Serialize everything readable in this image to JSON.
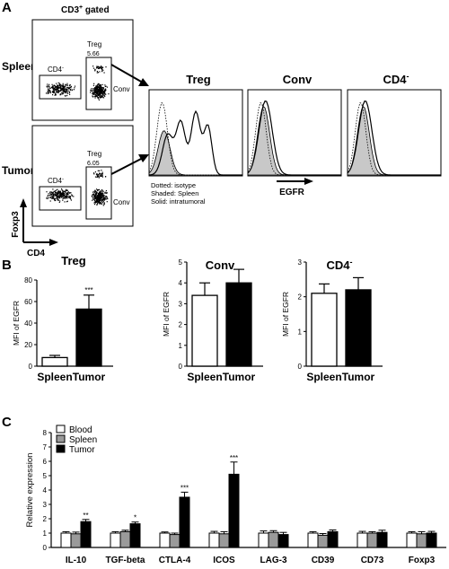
{
  "panel_a": {
    "letter": "A",
    "gate_label": "CD3",
    "gate_sup": "+",
    "gate_suffix": " gated",
    "rows": [
      {
        "tissue": "Spleen",
        "cd4neg_label": "CD4",
        "cd4neg_sup": "-",
        "treg_label": "Treg",
        "treg_pct": "5.66",
        "conv_label": "Conv"
      },
      {
        "tissue": "Tumor",
        "cd4neg_label": "CD4",
        "cd4neg_sup": "-",
        "treg_label": "Treg",
        "treg_pct": "6.05",
        "conv_label": "Conv"
      }
    ],
    "y_axis_label": "Foxp3",
    "x_axis_label": "CD4",
    "histogram_titles": [
      "Treg",
      "Conv",
      "CD4"
    ],
    "histogram_title_sup": "-",
    "legend": [
      "Dotted: isotype",
      "Shaded: Spleen",
      "Solid: intratumoral"
    ],
    "marker_label": "EGFR"
  },
  "panel_b": {
    "letter": "B",
    "charts": [
      {
        "title": "Treg",
        "ylabel": "MFI of EGFR",
        "ylim": [
          0,
          80
        ],
        "ticks": [
          0,
          20,
          40,
          60,
          80
        ],
        "categories": [
          "Spleen",
          "Tumor"
        ],
        "values": [
          8,
          53
        ],
        "errors": [
          2,
          13
        ],
        "significance": [
          "",
          "***"
        ]
      },
      {
        "title": "Conv",
        "ylabel": "MFI of EGFR",
        "ylim": [
          0,
          5
        ],
        "ticks": [
          0,
          1,
          2,
          3,
          4,
          5
        ],
        "categories": [
          "Spleen",
          "Tumor"
        ],
        "values": [
          3.4,
          4.0
        ],
        "errors": [
          0.6,
          0.65
        ],
        "significance": [
          "",
          ""
        ]
      },
      {
        "title": "CD4",
        "title_sup": "-",
        "ylabel": "MFI of EGFR",
        "ylim": [
          0,
          3
        ],
        "ticks": [
          0,
          1,
          2,
          3
        ],
        "categories": [
          "Spleen",
          "Tumor"
        ],
        "values": [
          2.1,
          2.2
        ],
        "errors": [
          0.27,
          0.35
        ],
        "significance": [
          "",
          ""
        ]
      }
    ]
  },
  "panel_c": {
    "letter": "C",
    "ylabel": "Relative expression",
    "ylim": [
      0,
      8
    ],
    "ticks": [
      0,
      1,
      2,
      3,
      4,
      5,
      6,
      7,
      8
    ],
    "legend": [
      {
        "name": "Blood",
        "color": "#ffffff"
      },
      {
        "name": "Spleen",
        "color": "#9a9a9a"
      },
      {
        "name": "Tumor",
        "color": "#000000"
      }
    ]
  },
  "chart_data": [
    {
      "type": "bar",
      "title": "Treg",
      "ylabel": "MFI of EGFR",
      "categories": [
        "Spleen",
        "Tumor"
      ],
      "values": [
        8,
        53
      ],
      "errors": [
        2,
        13
      ],
      "ylim": [
        0,
        80
      ]
    },
    {
      "type": "bar",
      "title": "Conv",
      "ylabel": "MFI of EGFR",
      "categories": [
        "Spleen",
        "Tumor"
      ],
      "values": [
        3.4,
        4.0
      ],
      "errors": [
        0.6,
        0.65
      ],
      "ylim": [
        0,
        5
      ]
    },
    {
      "type": "bar",
      "title": "CD4-",
      "ylabel": "MFI of EGFR",
      "categories": [
        "Spleen",
        "Tumor"
      ],
      "values": [
        2.1,
        2.2
      ],
      "errors": [
        0.27,
        0.35
      ],
      "ylim": [
        0,
        3
      ]
    },
    {
      "type": "bar",
      "ylabel": "Relative expression",
      "categories": [
        "IL-10",
        "TGF-beta",
        "CTLA-4",
        "ICOS",
        "LAG-3",
        "CD39",
        "CD73",
        "Foxp3"
      ],
      "series": [
        {
          "name": "Blood",
          "values": [
            1.0,
            1.0,
            1.0,
            1.0,
            1.0,
            1.0,
            1.0,
            1.0
          ],
          "errors": [
            0.1,
            0.1,
            0.08,
            0.12,
            0.15,
            0.1,
            0.12,
            0.1
          ]
        },
        {
          "name": "Spleen",
          "values": [
            0.95,
            1.1,
            0.9,
            0.95,
            1.05,
            0.85,
            1.0,
            0.95
          ],
          "errors": [
            0.12,
            0.1,
            0.1,
            0.15,
            0.12,
            0.12,
            0.1,
            0.15
          ]
        },
        {
          "name": "Tumor",
          "values": [
            1.8,
            1.65,
            3.5,
            5.1,
            0.9,
            1.1,
            1.05,
            1.0
          ],
          "errors": [
            0.15,
            0.12,
            0.35,
            0.85,
            0.15,
            0.12,
            0.15,
            0.12
          ]
        }
      ],
      "significance": [
        "**",
        "*",
        "***",
        "***",
        "",
        "",
        "",
        ""
      ],
      "ylim": [
        0,
        8
      ]
    }
  ]
}
